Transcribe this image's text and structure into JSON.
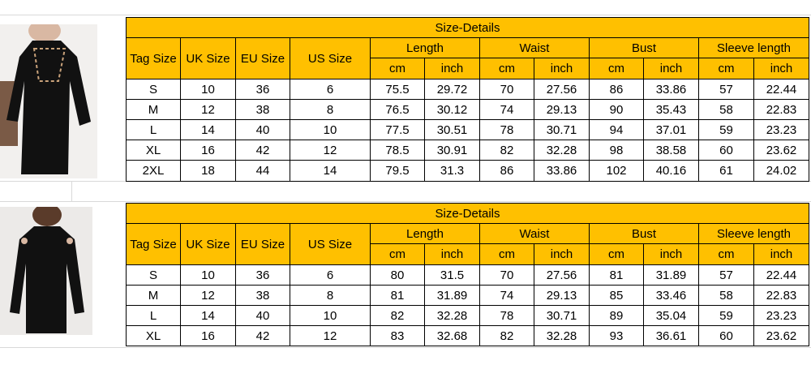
{
  "tables": [
    {
      "title": "Size-Details",
      "headers": [
        "Tag Size",
        "UK Size",
        "EU Size",
        "US Size"
      ],
      "groups": [
        {
          "name": "Length",
          "units": [
            "cm",
            "inch"
          ]
        },
        {
          "name": "Waist",
          "units": [
            "cm",
            "inch"
          ]
        },
        {
          "name": "Bust",
          "units": [
            "cm",
            "inch"
          ]
        },
        {
          "name": "Sleeve length",
          "units": [
            "cm",
            "inch"
          ]
        }
      ],
      "rows": [
        [
          "S",
          "10",
          "36",
          "6",
          "75.5",
          "29.72",
          "70",
          "27.56",
          "86",
          "33.86",
          "57",
          "22.44"
        ],
        [
          "M",
          "12",
          "38",
          "8",
          "76.5",
          "30.12",
          "74",
          "29.13",
          "90",
          "35.43",
          "58",
          "22.83"
        ],
        [
          "L",
          "14",
          "40",
          "10",
          "77.5",
          "30.51",
          "78",
          "30.71",
          "94",
          "37.01",
          "59",
          "23.23"
        ],
        [
          "XL",
          "16",
          "42",
          "12",
          "78.5",
          "30.91",
          "82",
          "32.28",
          "98",
          "38.58",
          "60",
          "23.62"
        ],
        [
          "2XL",
          "18",
          "44",
          "14",
          "79.5",
          "31.3",
          "86",
          "33.86",
          "102",
          "40.16",
          "61",
          "24.02"
        ]
      ]
    },
    {
      "title": "Size-Details",
      "headers": [
        "Tag Size",
        "UK Size",
        "EU Size",
        "US Size"
      ],
      "groups": [
        {
          "name": "Length",
          "units": [
            "cm",
            "inch"
          ]
        },
        {
          "name": "Waist",
          "units": [
            "cm",
            "inch"
          ]
        },
        {
          "name": "Bust",
          "units": [
            "cm",
            "inch"
          ]
        },
        {
          "name": "Sleeve length",
          "units": [
            "cm",
            "inch"
          ]
        }
      ],
      "rows": [
        [
          "S",
          "10",
          "36",
          "6",
          "80",
          "31.5",
          "70",
          "27.56",
          "81",
          "31.89",
          "57",
          "22.44"
        ],
        [
          "M",
          "12",
          "38",
          "8",
          "81",
          "31.89",
          "74",
          "29.13",
          "85",
          "33.46",
          "58",
          "22.83"
        ],
        [
          "L",
          "14",
          "40",
          "10",
          "82",
          "32.28",
          "78",
          "30.71",
          "89",
          "35.04",
          "59",
          "23.23"
        ],
        [
          "XL",
          "16",
          "42",
          "12",
          "83",
          "32.68",
          "82",
          "32.28",
          "93",
          "36.61",
          "60",
          "23.62"
        ]
      ]
    }
  ]
}
